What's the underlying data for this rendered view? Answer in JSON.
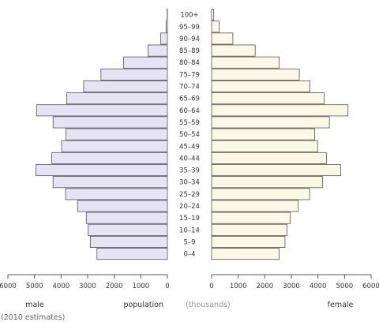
{
  "chart_data": {
    "type": "bar",
    "orientation": "population-pyramid",
    "categories": [
      "0–4",
      "5–9",
      "10–14",
      "15–19",
      "20–24",
      "25–29",
      "30–34",
      "35–39",
      "40–44",
      "45–49",
      "50–54",
      "55–59",
      "60–64",
      "65–69",
      "70–74",
      "75–79",
      "80–84",
      "85–89",
      "90–94",
      "95–99",
      "100+"
    ],
    "series": [
      {
        "name": "male",
        "values": [
          2650,
          2900,
          2980,
          3050,
          3380,
          3830,
          4300,
          4950,
          4350,
          3980,
          3820,
          4300,
          4920,
          3790,
          3150,
          2500,
          1650,
          730,
          250,
          50,
          10
        ]
      },
      {
        "name": "female",
        "values": [
          2540,
          2760,
          2840,
          2960,
          3260,
          3690,
          4170,
          4860,
          4320,
          3990,
          3880,
          4430,
          5130,
          4230,
          3700,
          3300,
          2540,
          1640,
          800,
          280,
          80
        ]
      }
    ],
    "ticks": [
      0,
      1000,
      2000,
      3000,
      4000,
      5000,
      6000
    ],
    "xlim": [
      0,
      6000
    ],
    "colors": {
      "male": "#e6e4f4",
      "female": "#fbf8e6",
      "stroke": "#555555"
    },
    "labels": {
      "left": "male",
      "center": "population",
      "center_paren": "(thousands)",
      "right": "female",
      "note": "(2010 estimates)"
    }
  }
}
